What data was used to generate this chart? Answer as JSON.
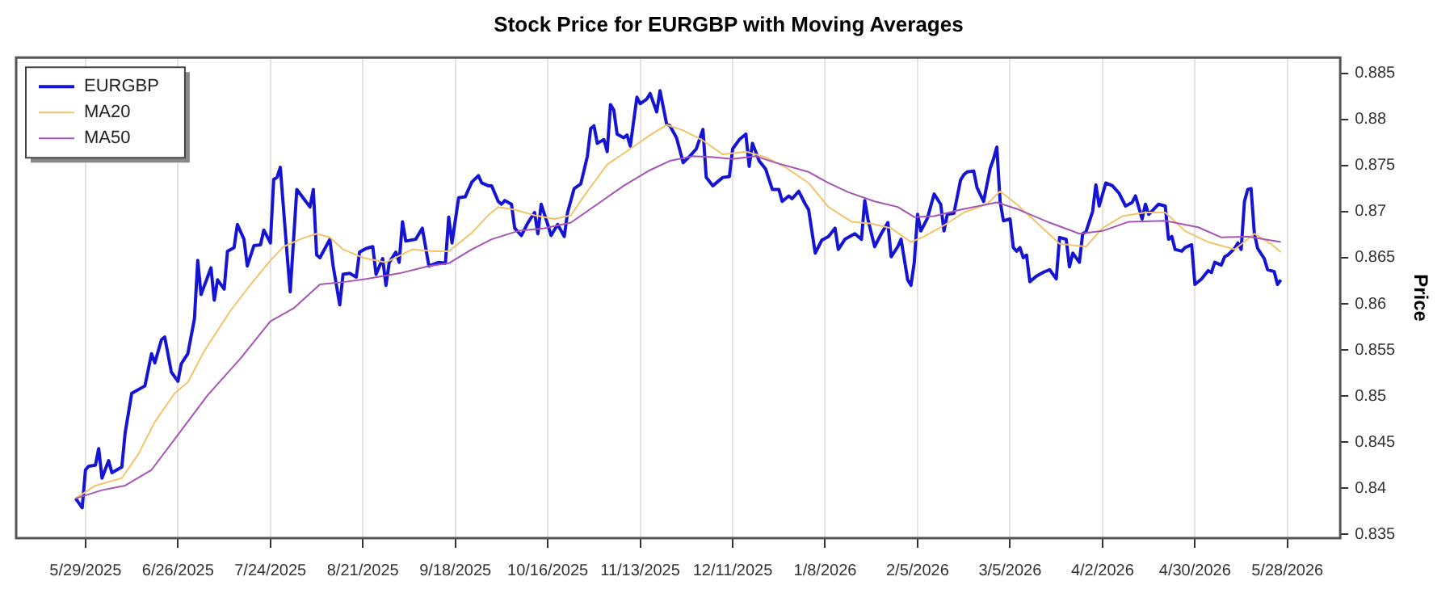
{
  "chart_data": {
    "type": "line",
    "title": "Stock Price for EURGBP with Moving Averages",
    "ylabel": "Price",
    "xlim": [
      "2025-05-08",
      "2026-06-13"
    ],
    "xticks": [
      {
        "value": "2025-05-29",
        "label": "5/29/2025"
      },
      {
        "value": "2025-06-26",
        "label": "6/26/2025"
      },
      {
        "value": "2025-07-24",
        "label": "7/24/2025"
      },
      {
        "value": "2025-08-21",
        "label": "8/21/2025"
      },
      {
        "value": "2025-09-18",
        "label": "9/18/2025"
      },
      {
        "value": "2025-10-16",
        "label": "10/16/2025"
      },
      {
        "value": "2025-11-13",
        "label": "11/13/2025"
      },
      {
        "value": "2025-12-11",
        "label": "12/11/2025"
      },
      {
        "value": "2026-01-08",
        "label": "1/8/2026"
      },
      {
        "value": "2026-02-05",
        "label": "2/5/2026"
      },
      {
        "value": "2026-03-05",
        "label": "3/5/2026"
      },
      {
        "value": "2026-04-02",
        "label": "4/2/2026"
      },
      {
        "value": "2026-04-30",
        "label": "4/30/2026"
      },
      {
        "value": "2026-05-28",
        "label": "5/28/2026"
      }
    ],
    "ylim": [
      0.8346,
      0.8867
    ],
    "yticks": [
      0.835,
      0.84,
      0.845,
      0.85,
      0.855,
      0.86,
      0.865,
      0.87,
      0.875,
      0.88,
      0.885
    ],
    "grid": "x",
    "legend": "top left",
    "marker": "none",
    "line_style": "solid",
    "series": [
      {
        "name": "EURGBP",
        "color": "#1414d2",
        "x": [
          "2025-05-26",
          "2025-05-28",
          "2025-05-29",
          "2025-05-30",
          "2025-06-01",
          "2025-06-02",
          "2025-06-03",
          "2025-06-05",
          "2025-06-06",
          "2025-06-09",
          "2025-06-10",
          "2025-06-12",
          "2025-06-16",
          "2025-06-18",
          "2025-06-19",
          "2025-06-21",
          "2025-06-22",
          "2025-06-24",
          "2025-06-26",
          "2025-06-27",
          "2025-06-29",
          "2025-07-01",
          "2025-07-02",
          "2025-07-03",
          "2025-07-06",
          "2025-07-07",
          "2025-07-08",
          "2025-07-10",
          "2025-07-11",
          "2025-07-13",
          "2025-07-14",
          "2025-07-16",
          "2025-07-17",
          "2025-07-19",
          "2025-07-21",
          "2025-07-22",
          "2025-07-24",
          "2025-07-25",
          "2025-07-26",
          "2025-07-27",
          "2025-07-29",
          "2025-07-30",
          "2025-08-01",
          "2025-08-05",
          "2025-08-06",
          "2025-08-07",
          "2025-08-08",
          "2025-08-11",
          "2025-08-12",
          "2025-08-14",
          "2025-08-15",
          "2025-08-17",
          "2025-08-19",
          "2025-08-20",
          "2025-08-22",
          "2025-08-24",
          "2025-08-25",
          "2025-08-27",
          "2025-08-28",
          "2025-08-29",
          "2025-08-31",
          "2025-09-01",
          "2025-09-02",
          "2025-09-03",
          "2025-09-06",
          "2025-09-08",
          "2025-09-10",
          "2025-09-13",
          "2025-09-15",
          "2025-09-16",
          "2025-09-17",
          "2025-09-19",
          "2025-09-21",
          "2025-09-23",
          "2025-09-25",
          "2025-09-26",
          "2025-09-28",
          "2025-09-29",
          "2025-10-01",
          "2025-10-02",
          "2025-10-03",
          "2025-10-05",
          "2025-10-06",
          "2025-10-08",
          "2025-10-10",
          "2025-10-12",
          "2025-10-13",
          "2025-10-14",
          "2025-10-16",
          "2025-10-17",
          "2025-10-19",
          "2025-10-21",
          "2025-10-22",
          "2025-10-24",
          "2025-10-26",
          "2025-10-28",
          "2025-10-29",
          "2025-10-30",
          "2025-10-31",
          "2025-11-02",
          "2025-11-03",
          "2025-11-04",
          "2025-11-05",
          "2025-11-06",
          "2025-11-08",
          "2025-11-09",
          "2025-11-10",
          "2025-11-12",
          "2025-11-13",
          "2025-11-15",
          "2025-11-16",
          "2025-11-18",
          "2025-11-19",
          "2025-11-21",
          "2025-11-22",
          "2025-11-24",
          "2025-11-26",
          "2025-11-28",
          "2025-11-30",
          "2025-12-02",
          "2025-12-03",
          "2025-12-05",
          "2025-12-08",
          "2025-12-10",
          "2025-12-11",
          "2025-12-13",
          "2025-12-15",
          "2025-12-16",
          "2025-12-17",
          "2025-12-19",
          "2025-12-21",
          "2025-12-23",
          "2025-12-25",
          "2025-12-26",
          "2025-12-28",
          "2025-12-29",
          "2025-12-31",
          "2026-01-02",
          "2026-01-03",
          "2026-01-05",
          "2026-01-07",
          "2026-01-09",
          "2026-01-11",
          "2026-01-12",
          "2026-01-14",
          "2026-01-15",
          "2026-01-17",
          "2026-01-19",
          "2026-01-20",
          "2026-01-21",
          "2026-01-23",
          "2026-01-25",
          "2026-01-27",
          "2026-01-28",
          "2026-01-30",
          "2026-01-31",
          "2026-02-02",
          "2026-02-03",
          "2026-02-04",
          "2026-02-05",
          "2026-02-06",
          "2026-02-08",
          "2026-02-10",
          "2026-02-12",
          "2026-02-13",
          "2026-02-14",
          "2026-02-16",
          "2026-02-18",
          "2026-02-19",
          "2026-02-20",
          "2026-02-22",
          "2026-02-23",
          "2026-02-25",
          "2026-02-27",
          "2026-02-28",
          "2026-03-01",
          "2026-03-02",
          "2026-03-03",
          "2026-03-05",
          "2026-03-06",
          "2026-03-07",
          "2026-03-08",
          "2026-03-09",
          "2026-03-10",
          "2026-03-11",
          "2026-03-13",
          "2026-03-15",
          "2026-03-17",
          "2026-03-19",
          "2026-03-20",
          "2026-03-22",
          "2026-03-23",
          "2026-03-24",
          "2026-03-26",
          "2026-03-27",
          "2026-03-28",
          "2026-03-30",
          "2026-03-31",
          "2026-04-01",
          "2026-04-03",
          "2026-04-05",
          "2026-04-07",
          "2026-04-09",
          "2026-04-11",
          "2026-04-12",
          "2026-04-14",
          "2026-04-15",
          "2026-04-16",
          "2026-04-19",
          "2026-04-21",
          "2026-04-22",
          "2026-04-23",
          "2026-04-24",
          "2026-04-26",
          "2026-04-27",
          "2026-04-29",
          "2026-04-30",
          "2026-05-02",
          "2026-05-04",
          "2026-05-05",
          "2026-05-06",
          "2026-05-08",
          "2026-05-09",
          "2026-05-10",
          "2026-05-12",
          "2026-05-13",
          "2026-05-14",
          "2026-05-15",
          "2026-05-16",
          "2026-05-17",
          "2026-05-18",
          "2026-05-19",
          "2026-05-21",
          "2026-05-22",
          "2026-05-24",
          "2026-05-25",
          "2026-05-26"
        ],
        "values": [
          0.8389,
          0.8379,
          0.842,
          0.8424,
          0.8425,
          0.8443,
          0.8411,
          0.843,
          0.8417,
          0.8423,
          0.846,
          0.8503,
          0.8511,
          0.8546,
          0.8536,
          0.8561,
          0.8564,
          0.8526,
          0.8516,
          0.8535,
          0.8546,
          0.8584,
          0.8647,
          0.861,
          0.8639,
          0.8604,
          0.8626,
          0.8616,
          0.8657,
          0.8661,
          0.8686,
          0.867,
          0.8641,
          0.8663,
          0.8664,
          0.868,
          0.8666,
          0.8735,
          0.8737,
          0.8748,
          0.8656,
          0.8613,
          0.8724,
          0.8705,
          0.8724,
          0.8653,
          0.865,
          0.867,
          0.8641,
          0.8599,
          0.8632,
          0.8633,
          0.8629,
          0.8656,
          0.866,
          0.8662,
          0.8632,
          0.8649,
          0.862,
          0.8645,
          0.8656,
          0.8645,
          0.8689,
          0.8668,
          0.867,
          0.8682,
          0.8641,
          0.8645,
          0.8644,
          0.8694,
          0.8666,
          0.8715,
          0.8716,
          0.8732,
          0.8739,
          0.8731,
          0.8728,
          0.8728,
          0.8711,
          0.8708,
          0.8712,
          0.8708,
          0.8682,
          0.8674,
          0.8688,
          0.8699,
          0.8676,
          0.8708,
          0.8686,
          0.8674,
          0.8686,
          0.8673,
          0.8699,
          0.8725,
          0.873,
          0.876,
          0.879,
          0.8793,
          0.8774,
          0.8778,
          0.8765,
          0.8816,
          0.881,
          0.8784,
          0.878,
          0.8783,
          0.8771,
          0.8824,
          0.8817,
          0.8822,
          0.8828,
          0.8808,
          0.8831,
          0.8795,
          0.8793,
          0.878,
          0.8753,
          0.876,
          0.8768,
          0.8789,
          0.8737,
          0.8728,
          0.8737,
          0.8738,
          0.8768,
          0.8778,
          0.8784,
          0.8749,
          0.8774,
          0.8755,
          0.8746,
          0.8724,
          0.8724,
          0.8711,
          0.8717,
          0.8714,
          0.8722,
          0.8708,
          0.8702,
          0.8655,
          0.8669,
          0.8673,
          0.8682,
          0.8659,
          0.867,
          0.8672,
          0.8676,
          0.867,
          0.8712,
          0.8691,
          0.8662,
          0.8676,
          0.8688,
          0.8651,
          0.8662,
          0.867,
          0.8626,
          0.862,
          0.8645,
          0.8697,
          0.8679,
          0.8693,
          0.8719,
          0.8708,
          0.8679,
          0.8697,
          0.8698,
          0.8734,
          0.874,
          0.8743,
          0.8744,
          0.8726,
          0.8711,
          0.8747,
          0.8757,
          0.877,
          0.8711,
          0.869,
          0.8692,
          0.8661,
          0.8657,
          0.8661,
          0.865,
          0.8653,
          0.8624,
          0.863,
          0.8634,
          0.8637,
          0.8627,
          0.8672,
          0.867,
          0.864,
          0.8655,
          0.8645,
          0.8676,
          0.8678,
          0.87,
          0.8729,
          0.8706,
          0.8731,
          0.8728,
          0.872,
          0.8706,
          0.871,
          0.8717,
          0.8692,
          0.8708,
          0.8697,
          0.8708,
          0.8706,
          0.867,
          0.8673,
          0.8659,
          0.8657,
          0.8661,
          0.8664,
          0.8621,
          0.8627,
          0.8636,
          0.8634,
          0.8645,
          0.8642,
          0.8651,
          0.8653,
          0.866,
          0.8666,
          0.8659,
          0.8711,
          0.8724,
          0.8725,
          0.8676,
          0.866,
          0.8649,
          0.8637,
          0.8635,
          0.8621,
          0.8626
        ]
      },
      {
        "name": "MA20",
        "color": "#f2c46a",
        "x": [
          "2025-05-26",
          "2025-06-01",
          "2025-06-06",
          "2025-06-09",
          "2025-06-14",
          "2025-06-19",
          "2025-06-25",
          "2025-06-29",
          "2025-07-04",
          "2025-07-12",
          "2025-07-18",
          "2025-07-24",
          "2025-07-28",
          "2025-08-02",
          "2025-08-07",
          "2025-08-11",
          "2025-08-15",
          "2025-08-21",
          "2025-08-28",
          "2025-09-05",
          "2025-09-12",
          "2025-09-16",
          "2025-09-23",
          "2025-09-28",
          "2025-10-01",
          "2025-10-06",
          "2025-10-12",
          "2025-10-18",
          "2025-10-23",
          "2025-10-28",
          "2025-11-03",
          "2025-11-10",
          "2025-11-16",
          "2025-11-21",
          "2025-11-26",
          "2025-12-02",
          "2025-12-08",
          "2025-12-15",
          "2025-12-21",
          "2025-12-27",
          "2026-01-03",
          "2026-01-09",
          "2026-01-16",
          "2026-01-22",
          "2026-01-28",
          "2026-02-03",
          "2026-02-07",
          "2026-02-13",
          "2026-02-19",
          "2026-02-26",
          "2026-03-02",
          "2026-03-07",
          "2026-03-14",
          "2026-03-20",
          "2026-03-28",
          "2026-04-02",
          "2026-04-08",
          "2026-04-15",
          "2026-04-21",
          "2026-04-27",
          "2026-05-04",
          "2026-05-12",
          "2026-05-18",
          "2026-05-23",
          "2026-05-26"
        ],
        "values": [
          0.8389,
          0.8403,
          0.8408,
          0.8411,
          0.8437,
          0.8472,
          0.8503,
          0.8515,
          0.8549,
          0.8593,
          0.8621,
          0.8647,
          0.8662,
          0.867,
          0.8676,
          0.8672,
          0.8659,
          0.865,
          0.8645,
          0.8659,
          0.8657,
          0.8657,
          0.8677,
          0.8696,
          0.8705,
          0.8702,
          0.8696,
          0.8692,
          0.8696,
          0.8722,
          0.8751,
          0.8768,
          0.8783,
          0.8794,
          0.8788,
          0.8777,
          0.8762,
          0.8765,
          0.8759,
          0.8748,
          0.8731,
          0.8705,
          0.8689,
          0.8687,
          0.8682,
          0.8667,
          0.8673,
          0.8685,
          0.8699,
          0.8708,
          0.8722,
          0.8708,
          0.8685,
          0.8665,
          0.8662,
          0.8682,
          0.8695,
          0.8699,
          0.8699,
          0.8679,
          0.8667,
          0.8659,
          0.8676,
          0.8665,
          0.8656
        ]
      },
      {
        "name": "MA50",
        "color": "#a455b4",
        "x": [
          "2025-05-26",
          "2025-06-03",
          "2025-06-10",
          "2025-06-18",
          "2025-06-26",
          "2025-07-05",
          "2025-07-15",
          "2025-07-24",
          "2025-07-31",
          "2025-08-08",
          "2025-08-16",
          "2025-08-22",
          "2025-09-01",
          "2025-09-10",
          "2025-09-16",
          "2025-09-23",
          "2025-09-29",
          "2025-10-07",
          "2025-10-15",
          "2025-10-23",
          "2025-10-31",
          "2025-11-08",
          "2025-11-16",
          "2025-11-22",
          "2025-11-29",
          "2025-12-05",
          "2025-12-11",
          "2025-12-18",
          "2025-12-24",
          "2026-01-03",
          "2026-01-09",
          "2026-01-15",
          "2026-01-23",
          "2026-01-30",
          "2026-02-04",
          "2026-02-10",
          "2026-02-18",
          "2026-03-01",
          "2026-03-07",
          "2026-03-17",
          "2026-03-26",
          "2026-04-02",
          "2026-04-10",
          "2026-04-21",
          "2026-05-01",
          "2026-05-08",
          "2026-05-16",
          "2026-05-26"
        ],
        "values": [
          0.8389,
          0.8398,
          0.8403,
          0.842,
          0.8458,
          0.8501,
          0.8541,
          0.8581,
          0.8595,
          0.8621,
          0.8624,
          0.8627,
          0.8633,
          0.8641,
          0.8644,
          0.8659,
          0.867,
          0.8679,
          0.8682,
          0.8688,
          0.8708,
          0.8728,
          0.8745,
          0.8755,
          0.876,
          0.8759,
          0.8757,
          0.876,
          0.8753,
          0.8743,
          0.8731,
          0.8721,
          0.8711,
          0.8705,
          0.8694,
          0.8695,
          0.8702,
          0.871,
          0.8703,
          0.8688,
          0.8676,
          0.8679,
          0.8689,
          0.869,
          0.8683,
          0.8672,
          0.8673,
          0.8667
        ]
      }
    ]
  }
}
